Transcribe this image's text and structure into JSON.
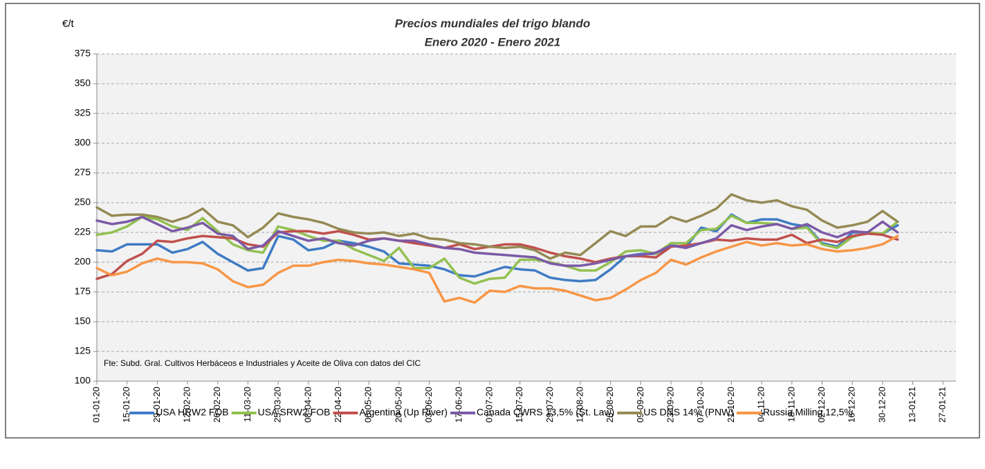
{
  "chart_data": {
    "type": "line",
    "title": "Precios mundiales del trigo blando",
    "subtitle": "Enero 2020 - Enero 2021",
    "y_label": "€/t",
    "annotation": "Fte: Subd. Gral. Cultivos Herbáceos e Industriales y Aceite de Oliva con datos del  CIC",
    "x": [
      "2020-01-01",
      "2020-01-08",
      "2020-01-15",
      "2020-01-22",
      "2020-01-29",
      "2020-02-05",
      "2020-02-12",
      "2020-02-19",
      "2020-02-26",
      "2020-03-04",
      "2020-03-11",
      "2020-03-18",
      "2020-03-25",
      "2020-04-01",
      "2020-04-08",
      "2020-04-15",
      "2020-04-22",
      "2020-04-29",
      "2020-05-06",
      "2020-05-13",
      "2020-05-20",
      "2020-05-27",
      "2020-06-03",
      "2020-06-10",
      "2020-06-17",
      "2020-06-24",
      "2020-07-01",
      "2020-07-08",
      "2020-07-15",
      "2020-07-22",
      "2020-07-29",
      "2020-08-05",
      "2020-08-12",
      "2020-08-19",
      "2020-08-26",
      "2020-09-02",
      "2020-09-09",
      "2020-09-16",
      "2020-09-23",
      "2020-09-30",
      "2020-10-07",
      "2020-10-14",
      "2020-10-21",
      "2020-10-28",
      "2020-11-04",
      "2020-11-11",
      "2020-11-18",
      "2020-11-25",
      "2020-12-02",
      "2020-12-09",
      "2020-12-16",
      "2020-12-23",
      "2020-12-30",
      "2021-01-06"
    ],
    "xlim": [
      "2020-01-01",
      "2021-02-02"
    ],
    "xticks": [
      {
        "value": "2020-01-01",
        "label": "01-01-20"
      },
      {
        "value": "2020-01-15",
        "label": "15-01-20"
      },
      {
        "value": "2020-01-29",
        "label": "29-01-20"
      },
      {
        "value": "2020-02-12",
        "label": "12-02-20"
      },
      {
        "value": "2020-02-26",
        "label": "26-02-20"
      },
      {
        "value": "2020-03-11",
        "label": "11-03-20"
      },
      {
        "value": "2020-03-25",
        "label": "25-03-20"
      },
      {
        "value": "2020-04-08",
        "label": "08-04-20"
      },
      {
        "value": "2020-04-22",
        "label": "22-04-20"
      },
      {
        "value": "2020-05-06",
        "label": "06-05-20"
      },
      {
        "value": "2020-05-20",
        "label": "20-05-20"
      },
      {
        "value": "2020-06-03",
        "label": "03-06-20"
      },
      {
        "value": "2020-06-17",
        "label": "17-06-20"
      },
      {
        "value": "2020-07-01",
        "label": "01-07-20"
      },
      {
        "value": "2020-07-15",
        "label": "15-07-20"
      },
      {
        "value": "2020-07-29",
        "label": "29-07-20"
      },
      {
        "value": "2020-08-12",
        "label": "12-08-20"
      },
      {
        "value": "2020-08-26",
        "label": "26-08-20"
      },
      {
        "value": "2020-09-09",
        "label": "09-09-20"
      },
      {
        "value": "2020-09-23",
        "label": "23-09-20"
      },
      {
        "value": "2020-10-07",
        "label": "07-10-20"
      },
      {
        "value": "2020-10-21",
        "label": "21-10-20"
      },
      {
        "value": "2020-11-04",
        "label": "04-11-20"
      },
      {
        "value": "2020-11-18",
        "label": "18-11-20"
      },
      {
        "value": "2020-12-02",
        "label": "02-12-20"
      },
      {
        "value": "2020-12-16",
        "label": "16-12-20"
      },
      {
        "value": "2020-12-30",
        "label": "30-12-20"
      },
      {
        "value": "2021-01-13",
        "label": "13-01-21"
      },
      {
        "value": "2021-01-27",
        "label": "27-01-21"
      }
    ],
    "ylim": [
      100,
      375
    ],
    "yticks": [
      100,
      125,
      150,
      175,
      200,
      225,
      250,
      275,
      300,
      325,
      350,
      375
    ],
    "grid": true,
    "legend": "bottom",
    "series": [
      {
        "name": "USA HRW2 FOB",
        "color": "#3f7bc4",
        "values": [
          210,
          209,
          215,
          215,
          215,
          208,
          211,
          217,
          207,
          200,
          193,
          195,
          222,
          219,
          210,
          212,
          218,
          216,
          213,
          209,
          199,
          198,
          197,
          194,
          189,
          188,
          192,
          196,
          194,
          193,
          187,
          185,
          184,
          185,
          194,
          205,
          207,
          207,
          214,
          213,
          229,
          226,
          240,
          233,
          236,
          236,
          232,
          230,
          216,
          213,
          225,
          225,
          224,
          231
        ]
      },
      {
        "name": "USA SRW2 FOB",
        "color": "#92c050",
        "values": [
          223,
          225,
          230,
          238,
          236,
          230,
          227,
          237,
          226,
          215,
          210,
          208,
          230,
          227,
          222,
          218,
          218,
          211,
          206,
          201,
          212,
          195,
          195,
          203,
          187,
          182,
          186,
          187,
          202,
          202,
          200,
          197,
          193,
          193,
          200,
          209,
          210,
          207,
          216,
          216,
          227,
          228,
          239,
          233,
          233,
          232,
          228,
          229,
          215,
          212,
          221,
          225,
          224,
          234
        ]
      },
      {
        "name": "Argentina (Up River)",
        "color": "#c0504d",
        "values": [
          186,
          190,
          201,
          207,
          218,
          217,
          220,
          222,
          221,
          220,
          215,
          213,
          225,
          226,
          226,
          224,
          226,
          223,
          219,
          220,
          218,
          216,
          214,
          212,
          215,
          211,
          213,
          215,
          215,
          212,
          208,
          205,
          203,
          200,
          203,
          205,
          205,
          204,
          213,
          214,
          216,
          219,
          218,
          220,
          219,
          219,
          223,
          216,
          219,
          217,
          222,
          224,
          223,
          219
        ]
      },
      {
        "name": "Canada CWRS 13,5% (St. Law)",
        "color": "#7b5aa6",
        "values": [
          235,
          232,
          234,
          238,
          232,
          226,
          229,
          233,
          224,
          222,
          211,
          214,
          226,
          222,
          218,
          220,
          216,
          214,
          218,
          220,
          218,
          218,
          215,
          212,
          211,
          208,
          207,
          206,
          205,
          204,
          199,
          197,
          197,
          199,
          202,
          205,
          206,
          208,
          214,
          212,
          216,
          220,
          231,
          227,
          230,
          232,
          228,
          232,
          225,
          221,
          226,
          225,
          234,
          225
        ]
      },
      {
        "name": "US DNS 14% (PNW)",
        "color": "#948a54",
        "values": [
          246,
          239,
          240,
          240,
          238,
          234,
          238,
          245,
          234,
          231,
          221,
          229,
          241,
          238,
          236,
          233,
          228,
          225,
          224,
          225,
          222,
          224,
          220,
          219,
          216,
          215,
          213,
          212,
          213,
          210,
          203,
          208,
          206,
          216,
          226,
          222,
          230,
          230,
          238,
          234,
          239,
          245,
          257,
          252,
          250,
          252,
          247,
          244,
          235,
          229,
          231,
          234,
          243,
          234
        ]
      },
      {
        "name": "Russia Milling 12,5%",
        "color": "#f79646",
        "values": [
          195,
          189,
          192,
          199,
          203,
          200,
          200,
          199,
          194,
          184,
          179,
          181,
          191,
          197,
          197,
          200,
          202,
          201,
          199,
          198,
          196,
          194,
          191,
          167,
          170,
          166,
          176,
          175,
          180,
          178,
          178,
          176,
          172,
          168,
          170,
          177,
          185,
          191,
          202,
          198,
          204,
          209,
          213,
          217,
          214,
          216,
          214,
          215,
          211,
          209,
          210,
          212,
          215,
          222
        ]
      }
    ]
  }
}
